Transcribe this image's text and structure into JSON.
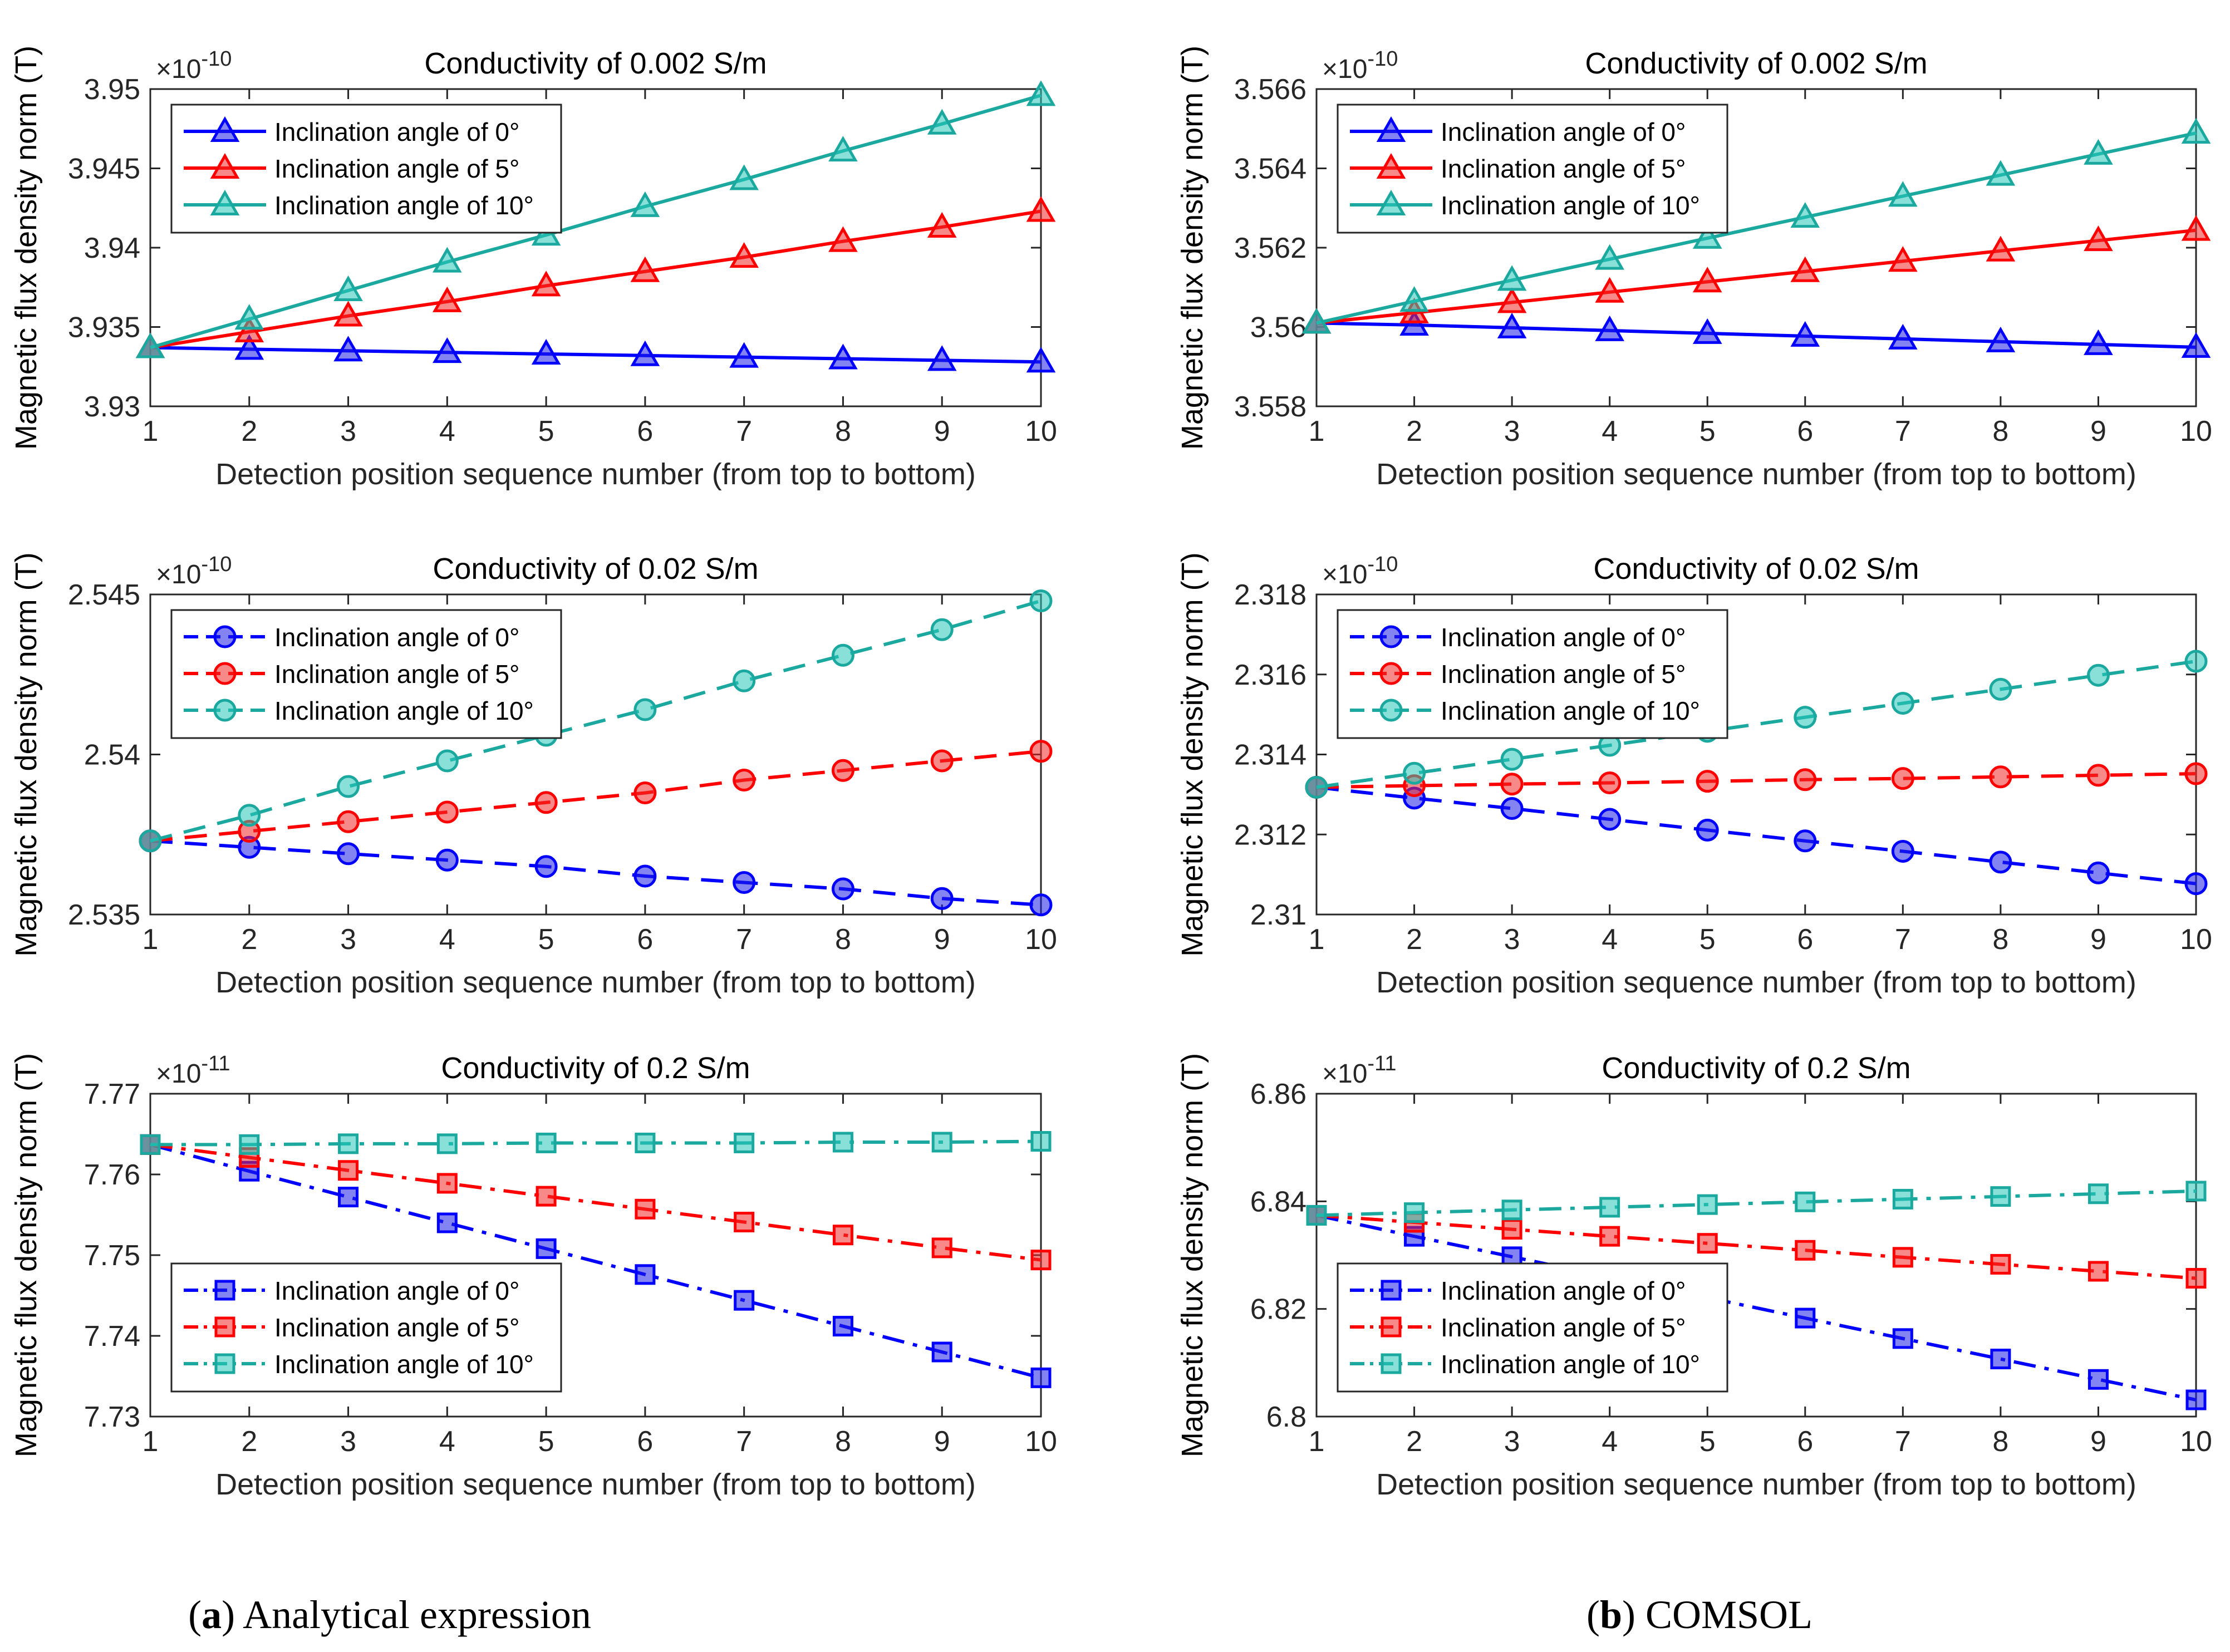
{
  "figure": {
    "caption_a_letter": "a",
    "caption_a_text": " Analytical expression",
    "caption_b_letter": "b",
    "caption_b_text": " COMSOL"
  },
  "colors": {
    "blue": "#0000FF",
    "red": "#FF0000",
    "teal": "#1AA89F",
    "teal_fill": "#26C6B8",
    "blue_fill": "#1E1EE6",
    "red_fill": "#F02828"
  },
  "chart_data": [
    {
      "id": "a1",
      "type": "line",
      "title": "Conductivity of 0.002 S/m",
      "xlabel": "Detection position sequence number (from top to bottom)",
      "ylabel": "Magnetic flux density norm (T)",
      "exponent_base": "×10",
      "exponent": "-10",
      "x": [
        1,
        2,
        3,
        4,
        5,
        6,
        7,
        8,
        9,
        10
      ],
      "xticks": [
        "1",
        "2",
        "3",
        "4",
        "5",
        "6",
        "7",
        "8",
        "9",
        "10"
      ],
      "ylim": [
        3.93,
        3.95
      ],
      "yticks": [
        3.93,
        3.935,
        3.94,
        3.945,
        3.95
      ],
      "yticklabels": [
        "3.93",
        "3.935",
        "3.94",
        "3.945",
        "3.95"
      ],
      "legend_loc": "top-left",
      "series": [
        {
          "name": "Inclination angle of 0°",
          "color": "blue",
          "marker": "triangle",
          "dash": "solid",
          "values": [
            3.9337,
            3.9336,
            3.9335,
            3.9334,
            3.9333,
            3.9332,
            3.9331,
            3.933,
            3.9329,
            3.9328
          ]
        },
        {
          "name": "Inclination angle of 5°",
          "color": "red",
          "marker": "triangle",
          "dash": "solid",
          "values": [
            3.9337,
            3.9347,
            3.9357,
            3.9366,
            3.9376,
            3.9385,
            3.9394,
            3.9404,
            3.9413,
            3.9423
          ]
        },
        {
          "name": "Inclination angle of 10°",
          "color": "teal",
          "marker": "triangle",
          "dash": "solid",
          "values": [
            3.9337,
            3.9355,
            3.9373,
            3.9391,
            3.9408,
            3.9426,
            3.9443,
            3.9461,
            3.9478,
            3.9496
          ]
        }
      ]
    },
    {
      "id": "b1",
      "type": "line",
      "title": "Conductivity of 0.002 S/m",
      "xlabel": "Detection position sequence number (from top to bottom)",
      "ylabel": "Magnetic flux density norm (T)",
      "exponent_base": "×10",
      "exponent": "-10",
      "x": [
        1,
        2,
        3,
        4,
        5,
        6,
        7,
        8,
        9,
        10
      ],
      "xticks": [
        "1",
        "2",
        "3",
        "4",
        "5",
        "6",
        "7",
        "8",
        "9",
        "10"
      ],
      "ylim": [
        3.558,
        3.566
      ],
      "yticks": [
        3.558,
        3.56,
        3.562,
        3.564,
        3.566
      ],
      "yticklabels": [
        "3.558",
        "3.56",
        "3.562",
        "3.564",
        "3.566"
      ],
      "legend_loc": "top-left",
      "series": [
        {
          "name": "Inclination angle of 0°",
          "color": "blue",
          "marker": "triangle",
          "dash": "solid",
          "values": [
            3.5601,
            3.56005,
            3.55998,
            3.55991,
            3.55984,
            3.55977,
            3.5597,
            3.55963,
            3.55956,
            3.55949
          ]
        },
        {
          "name": "Inclination angle of 5°",
          "color": "red",
          "marker": "triangle",
          "dash": "solid",
          "values": [
            3.5601,
            3.56036,
            3.56062,
            3.56088,
            3.56114,
            3.5614,
            3.56166,
            3.56192,
            3.56218,
            3.56244
          ]
        },
        {
          "name": "Inclination angle of 10°",
          "color": "teal",
          "marker": "triangle",
          "dash": "solid",
          "values": [
            3.5601,
            3.56065,
            3.56118,
            3.56171,
            3.56224,
            3.56277,
            3.5633,
            3.56383,
            3.56436,
            3.56489
          ]
        }
      ]
    },
    {
      "id": "a2",
      "type": "line",
      "title": "Conductivity of 0.02 S/m",
      "xlabel": "Detection position sequence number (from top to bottom)",
      "ylabel": "Magnetic flux density norm (T)",
      "exponent_base": "×10",
      "exponent": "-10",
      "x": [
        1,
        2,
        3,
        4,
        5,
        6,
        7,
        8,
        9,
        10
      ],
      "xticks": [
        "1",
        "2",
        "3",
        "4",
        "5",
        "6",
        "7",
        "8",
        "9",
        "10"
      ],
      "ylim": [
        2.535,
        2.545
      ],
      "yticks": [
        2.535,
        2.54,
        2.545
      ],
      "yticklabels": [
        "2.535",
        "2.54",
        "2.545"
      ],
      "legend_loc": "top-left",
      "series": [
        {
          "name": "Inclination angle of 0°",
          "color": "blue",
          "marker": "circle",
          "dash": "dashed",
          "values": [
            2.5373,
            2.5371,
            2.5369,
            2.5367,
            2.5365,
            2.5362,
            2.536,
            2.5358,
            2.5355,
            2.5353
          ]
        },
        {
          "name": "Inclination angle of 5°",
          "color": "red",
          "marker": "circle",
          "dash": "dashed",
          "values": [
            2.5373,
            2.5376,
            2.5379,
            2.5382,
            2.5385,
            2.5388,
            2.5392,
            2.5395,
            2.5398,
            2.5401
          ]
        },
        {
          "name": "Inclination angle of 10°",
          "color": "teal",
          "marker": "circle",
          "dash": "dashed",
          "values": [
            2.5373,
            2.5381,
            2.539,
            2.5398,
            2.5406,
            2.5414,
            2.5423,
            2.5431,
            2.5439,
            2.5448
          ]
        }
      ]
    },
    {
      "id": "b2",
      "type": "line",
      "title": "Conductivity of 0.02 S/m",
      "xlabel": "Detection position sequence number (from top to bottom)",
      "ylabel": "Magnetic flux density norm (T)",
      "exponent_base": "×10",
      "exponent": "-10",
      "x": [
        1,
        2,
        3,
        4,
        5,
        6,
        7,
        8,
        9,
        10
      ],
      "xticks": [
        "1",
        "2",
        "3",
        "4",
        "5",
        "6",
        "7",
        "8",
        "9",
        "10"
      ],
      "ylim": [
        2.31,
        2.318
      ],
      "yticks": [
        2.31,
        2.312,
        2.314,
        2.316,
        2.318
      ],
      "yticklabels": [
        "2.31",
        "2.312",
        "2.314",
        "2.316",
        "2.318"
      ],
      "legend_loc": "top-left",
      "series": [
        {
          "name": "Inclination angle of 0°",
          "color": "blue",
          "marker": "circle",
          "dash": "dashed",
          "values": [
            2.31318,
            2.31291,
            2.31265,
            2.31238,
            2.31211,
            2.31184,
            2.31158,
            2.31131,
            2.31104,
            2.31077
          ]
        },
        {
          "name": "Inclination angle of 5°",
          "color": "red",
          "marker": "circle",
          "dash": "dashed",
          "values": [
            2.31318,
            2.31322,
            2.31326,
            2.31329,
            2.31333,
            2.31337,
            2.3134,
            2.31344,
            2.31348,
            2.31352
          ]
        },
        {
          "name": "Inclination angle of 10°",
          "color": "teal",
          "marker": "circle",
          "dash": "dashed",
          "values": [
            2.31318,
            2.31353,
            2.31388,
            2.31423,
            2.31458,
            2.31493,
            2.31528,
            2.31563,
            2.31598,
            2.31633
          ]
        }
      ]
    },
    {
      "id": "a3",
      "type": "line",
      "title": "Conductivity of 0.2 S/m",
      "xlabel": "Detection position sequence number (from top to bottom)",
      "ylabel": "Magnetic flux density norm (T)",
      "exponent_base": "×10",
      "exponent": "-11",
      "x": [
        1,
        2,
        3,
        4,
        5,
        6,
        7,
        8,
        9,
        10
      ],
      "xticks": [
        "1",
        "2",
        "3",
        "4",
        "5",
        "6",
        "7",
        "8",
        "9",
        "10"
      ],
      "ylim": [
        7.73,
        7.77
      ],
      "yticks": [
        7.73,
        7.74,
        7.75,
        7.76,
        7.77
      ],
      "yticklabels": [
        "7.73",
        "7.74",
        "7.75",
        "7.76",
        "7.77"
      ],
      "legend_loc": "bottom-left",
      "series": [
        {
          "name": "Inclination angle of 0°",
          "color": "blue",
          "marker": "square",
          "dash": "dashdot",
          "values": [
            7.7637,
            7.7604,
            7.7572,
            7.754,
            7.7508,
            7.7476,
            7.7444,
            7.7412,
            7.738,
            7.7348
          ]
        },
        {
          "name": "Inclination angle of 5°",
          "color": "red",
          "marker": "square",
          "dash": "dashdot",
          "values": [
            7.7637,
            7.7621,
            7.7605,
            7.7589,
            7.7573,
            7.7557,
            7.7541,
            7.7525,
            7.7509,
            7.7494
          ]
        },
        {
          "name": "Inclination angle of 10°",
          "color": "teal",
          "marker": "square",
          "dash": "dashdot",
          "values": [
            7.7637,
            7.7637,
            7.7638,
            7.7638,
            7.7639,
            7.7639,
            7.7639,
            7.764,
            7.764,
            7.7641
          ]
        }
      ]
    },
    {
      "id": "b3",
      "type": "line",
      "title": "Conductivity of 0.2 S/m",
      "xlabel": "Detection position sequence number (from top to bottom)",
      "ylabel": "Magnetic flux density norm (T)",
      "exponent_base": "×10",
      "exponent": "-11",
      "x": [
        1,
        2,
        3,
        4,
        5,
        6,
        7,
        8,
        9,
        10
      ],
      "xticks": [
        "1",
        "2",
        "3",
        "4",
        "5",
        "6",
        "7",
        "8",
        "9",
        "10"
      ],
      "ylim": [
        6.8,
        6.86
      ],
      "yticks": [
        6.8,
        6.82,
        6.84,
        6.86
      ],
      "yticklabels": [
        "6.8",
        "6.82",
        "6.84",
        "6.86"
      ],
      "legend_loc": "bottom-left",
      "series": [
        {
          "name": "Inclination angle of 0°",
          "color": "blue",
          "marker": "square",
          "dash": "dashdot",
          "values": [
            6.8374,
            6.8335,
            6.8297,
            6.8259,
            6.8221,
            6.8183,
            6.8145,
            6.8107,
            6.8069,
            6.8031
          ]
        },
        {
          "name": "Inclination angle of 5°",
          "color": "red",
          "marker": "square",
          "dash": "dashdot",
          "values": [
            6.8374,
            6.8361,
            6.8348,
            6.8335,
            6.8322,
            6.8309,
            6.8296,
            6.8283,
            6.827,
            6.8257
          ]
        },
        {
          "name": "Inclination angle of 10°",
          "color": "teal",
          "marker": "square",
          "dash": "dashdot",
          "values": [
            6.8374,
            6.8379,
            6.8384,
            6.8389,
            6.8394,
            6.8399,
            6.8404,
            6.8409,
            6.8414,
            6.8419
          ]
        }
      ]
    }
  ]
}
